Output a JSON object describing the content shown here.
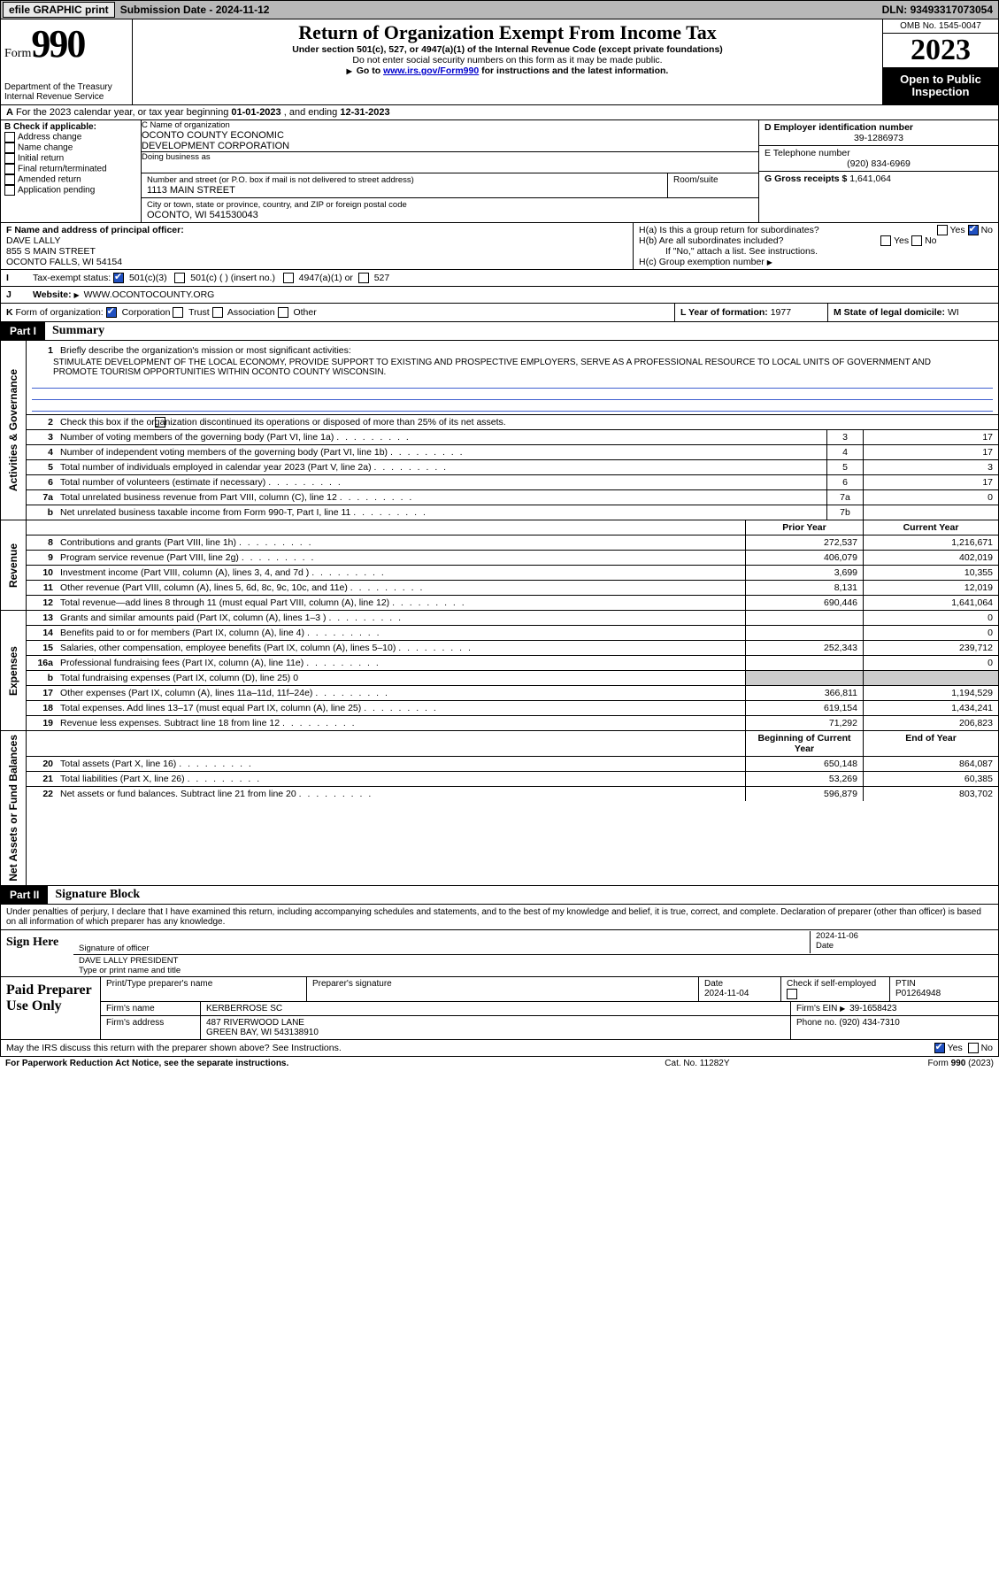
{
  "topbar": {
    "efile": "efile GRAPHIC print",
    "submission_label": "Submission Date - ",
    "submission_date": "2024-11-12",
    "dln_label": "DLN: ",
    "dln": "93493317073054"
  },
  "header": {
    "form_label": "Form",
    "form_num": "990",
    "dept1": "Department of the Treasury",
    "dept2": "Internal Revenue Service",
    "title": "Return of Organization Exempt From Income Tax",
    "sub1": "Under section 501(c), 527, or 4947(a)(1) of the Internal Revenue Code (except private foundations)",
    "sub2": "Do not enter social security numbers on this form as it may be made public.",
    "sub3_a": "Go to ",
    "sub3_link": "www.irs.gov/Form990",
    "sub3_b": " for instructions and the latest information.",
    "omb": "OMB No. 1545-0047",
    "year": "2023",
    "otp1": "Open to Public",
    "otp2": "Inspection"
  },
  "row_a": {
    "label": "A",
    "text_a": "For the 2023 calendar year, or tax year beginning ",
    "begin": "01-01-2023",
    "text_b": " , and ending ",
    "end": "12-31-2023"
  },
  "block_b": {
    "label": "B Check if applicable:",
    "opts": [
      "Address change",
      "Name change",
      "Initial return",
      "Final return/terminated",
      "Amended return",
      "Application pending"
    ]
  },
  "block_c": {
    "name_label": "C Name of organization",
    "name1": "OCONTO COUNTY ECONOMIC",
    "name2": "DEVELOPMENT CORPORATION",
    "dba_label": "Doing business as",
    "addr_label": "Number and street (or P.O. box if mail is not delivered to street address)",
    "room_label": "Room/suite",
    "addr": "1113 MAIN STREET",
    "city_label": "City or town, state or province, country, and ZIP or foreign postal code",
    "city": "OCONTO, WI  541530043"
  },
  "block_d": {
    "ein_label": "D Employer identification number",
    "ein": "39-1286973",
    "tel_label": "E Telephone number",
    "tel": "(920) 834-6969",
    "gross_label": "G Gross receipts $ ",
    "gross": "1,641,064"
  },
  "block_f": {
    "label": "F Name and address of principal officer:",
    "name": "DAVE LALLY",
    "addr1": "855 S MAIN STREET",
    "addr2": "OCONTO FALLS, WI  54154"
  },
  "block_h": {
    "ha": "H(a)  Is this a group return for subordinates?",
    "hb": "H(b)  Are all subordinates included?",
    "hb_note": "If \"No,\" attach a list. See instructions.",
    "hc": "H(c)  Group exemption number",
    "yes": "Yes",
    "no": "No"
  },
  "row_i": {
    "label": "I",
    "text": "Tax-exempt status:",
    "opt1": "501(c)(3)",
    "opt2": "501(c) (  ) (insert no.)",
    "opt3": "4947(a)(1) or",
    "opt4": "527"
  },
  "row_j": {
    "label": "J",
    "text": "Website:",
    "url": "WWW.OCONTOCOUNTY.ORG"
  },
  "row_k": {
    "label": "K",
    "text": "Form of organization:",
    "opts": [
      "Corporation",
      "Trust",
      "Association",
      "Other"
    ],
    "l_label": "L Year of formation: ",
    "l_val": "1977",
    "m_label": "M State of legal domicile: ",
    "m_val": "WI"
  },
  "part1": {
    "hdr_num": "Part I",
    "hdr_title": "Summary",
    "side_labels": {
      "ag": "Activities & Governance",
      "rev": "Revenue",
      "exp": "Expenses",
      "na": "Net Assets or Fund Balances"
    },
    "l1_label": "Briefly describe the organization's mission or most significant activities:",
    "l1_text": "STIMULATE DEVELOPMENT OF THE LOCAL ECONOMY, PROVIDE SUPPORT TO EXISTING AND PROSPECTIVE EMPLOYERS, SERVE AS A PROFESSIONAL RESOURCE TO LOCAL UNITS OF GOVERNMENT AND PROMOTE TOURISM OPPORTUNITIES WITHIN OCONTO COUNTY WISCONSIN.",
    "l2": "Check this box       if the organization discontinued its operations or disposed of more than 25% of its net assets.",
    "lines_ag": [
      {
        "n": "3",
        "t": "Number of voting members of the governing body (Part VI, line 1a)",
        "bn": "3",
        "v": "17"
      },
      {
        "n": "4",
        "t": "Number of independent voting members of the governing body (Part VI, line 1b)",
        "bn": "4",
        "v": "17"
      },
      {
        "n": "5",
        "t": "Total number of individuals employed in calendar year 2023 (Part V, line 2a)",
        "bn": "5",
        "v": "3"
      },
      {
        "n": "6",
        "t": "Total number of volunteers (estimate if necessary)",
        "bn": "6",
        "v": "17"
      },
      {
        "n": "7a",
        "t": "Total unrelated business revenue from Part VIII, column (C), line 12",
        "bn": "7a",
        "v": "0"
      },
      {
        "n": "b",
        "t": "Net unrelated business taxable income from Form 990-T, Part I, line 11",
        "bn": "7b",
        "v": ""
      }
    ],
    "col_hdr_prior": "Prior Year",
    "col_hdr_curr": "Current Year",
    "lines_rev": [
      {
        "n": "8",
        "t": "Contributions and grants (Part VIII, line 1h)",
        "p": "272,537",
        "c": "1,216,671"
      },
      {
        "n": "9",
        "t": "Program service revenue (Part VIII, line 2g)",
        "p": "406,079",
        "c": "402,019"
      },
      {
        "n": "10",
        "t": "Investment income (Part VIII, column (A), lines 3, 4, and 7d )",
        "p": "3,699",
        "c": "10,355"
      },
      {
        "n": "11",
        "t": "Other revenue (Part VIII, column (A), lines 5, 6d, 8c, 9c, 10c, and 11e)",
        "p": "8,131",
        "c": "12,019"
      },
      {
        "n": "12",
        "t": "Total revenue—add lines 8 through 11 (must equal Part VIII, column (A), line 12)",
        "p": "690,446",
        "c": "1,641,064"
      }
    ],
    "lines_exp": [
      {
        "n": "13",
        "t": "Grants and similar amounts paid (Part IX, column (A), lines 1–3 )",
        "p": "",
        "c": "0"
      },
      {
        "n": "14",
        "t": "Benefits paid to or for members (Part IX, column (A), line 4)",
        "p": "",
        "c": "0"
      },
      {
        "n": "15",
        "t": "Salaries, other compensation, employee benefits (Part IX, column (A), lines 5–10)",
        "p": "252,343",
        "c": "239,712"
      },
      {
        "n": "16a",
        "t": "Professional fundraising fees (Part IX, column (A), line 11e)",
        "p": "",
        "c": "0"
      },
      {
        "n": "b",
        "t": "Total fundraising expenses (Part IX, column (D), line 25) 0",
        "p": "—shade—",
        "c": "—shade—"
      },
      {
        "n": "17",
        "t": "Other expenses (Part IX, column (A), lines 11a–11d, 11f–24e)",
        "p": "366,811",
        "c": "1,194,529"
      },
      {
        "n": "18",
        "t": "Total expenses. Add lines 13–17 (must equal Part IX, column (A), line 25)",
        "p": "619,154",
        "c": "1,434,241"
      },
      {
        "n": "19",
        "t": "Revenue less expenses. Subtract line 18 from line 12",
        "p": "71,292",
        "c": "206,823"
      }
    ],
    "na_hdr_beg": "Beginning of Current Year",
    "na_hdr_end": "End of Year",
    "lines_na": [
      {
        "n": "20",
        "t": "Total assets (Part X, line 16)",
        "p": "650,148",
        "c": "864,087"
      },
      {
        "n": "21",
        "t": "Total liabilities (Part X, line 26)",
        "p": "53,269",
        "c": "60,385"
      },
      {
        "n": "22",
        "t": "Net assets or fund balances. Subtract line 21 from line 20",
        "p": "596,879",
        "c": "803,702"
      }
    ]
  },
  "part2": {
    "hdr_num": "Part II",
    "hdr_title": "Signature Block",
    "perjury": "Under penalties of perjury, I declare that I have examined this return, including accompanying schedules and statements, and to the best of my knowledge and belief, it is true, correct, and complete. Declaration of preparer (other than officer) is based on all information of which preparer has any knowledge.",
    "sign_here": "Sign Here",
    "sig_officer_label": "Signature of officer",
    "sig_date": "2024-11-06",
    "sig_date_label": "Date",
    "sig_name": "DAVE LALLY PRESIDENT",
    "sig_name_label": "Type or print name and title",
    "paid": "Paid Preparer Use Only",
    "prep_name_label": "Print/Type preparer's name",
    "prep_sig_label": "Preparer's signature",
    "prep_date_label": "Date",
    "prep_date": "2024-11-04",
    "prep_check": "Check        if self-employed",
    "ptin_label": "PTIN",
    "ptin": "P01264948",
    "firm_name_label": "Firm's name",
    "firm_name": "KERBERROSE SC",
    "firm_ein_label": "Firm's EIN",
    "firm_ein": "39-1658423",
    "firm_addr_label": "Firm's address",
    "firm_addr1": "487 RIVERWOOD LANE",
    "firm_addr2": "GREEN BAY, WI  543138910",
    "phone_label": "Phone no.",
    "phone": "(920) 434-7310",
    "discuss": "May the IRS discuss this return with the preparer shown above? See Instructions.",
    "yes": "Yes",
    "no": "No"
  },
  "footer": {
    "pra": "For Paperwork Reduction Act Notice, see the separate instructions.",
    "cat": "Cat. No. 11282Y",
    "form": "Form 990 (2023)"
  }
}
